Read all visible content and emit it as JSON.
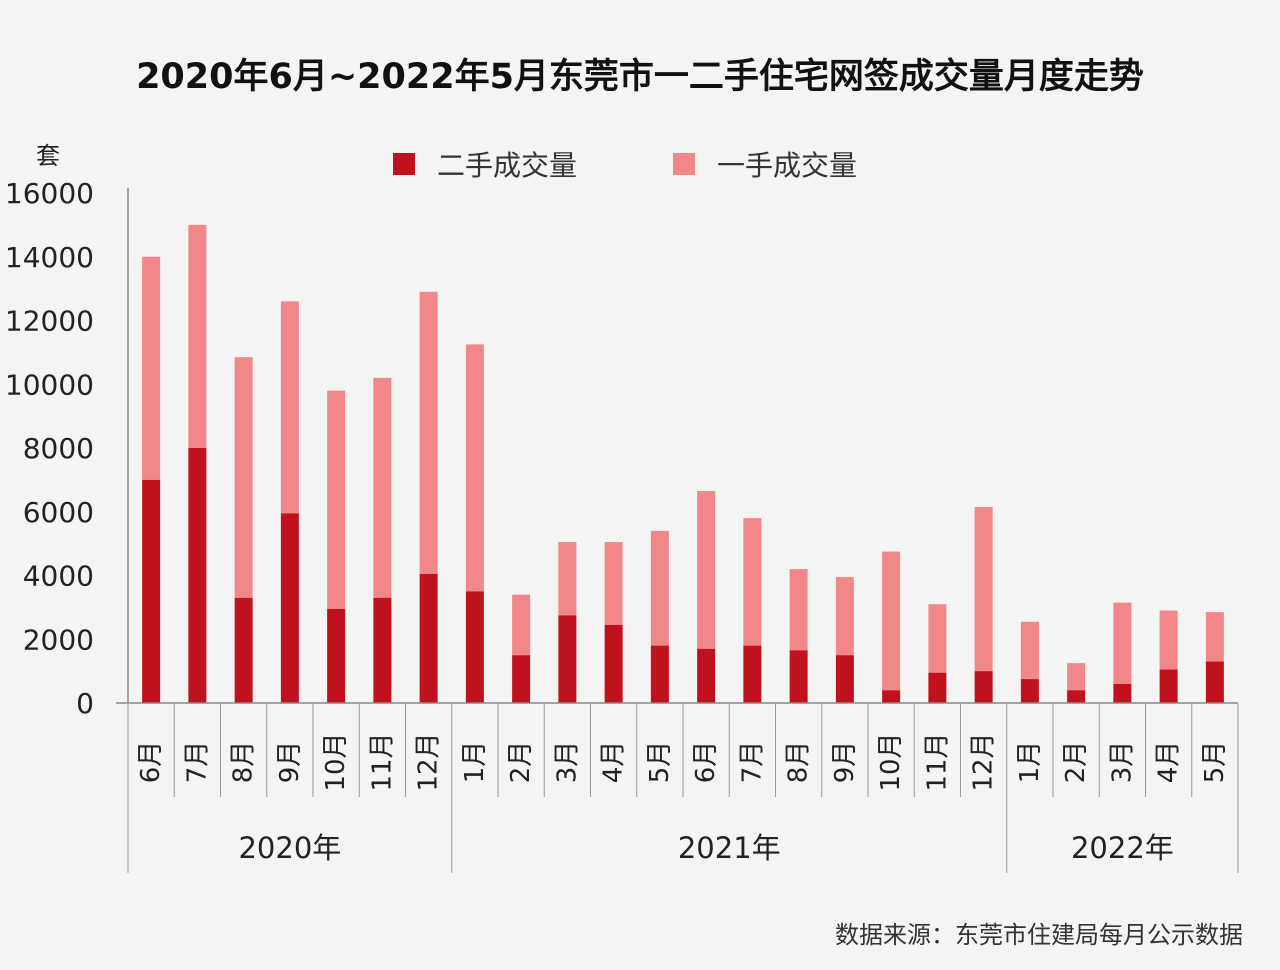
{
  "chart_data": {
    "type": "bar",
    "stacked": true,
    "title": "2020年6月~2022年5月东莞市一二手住宅网签成交量月度走势",
    "ylabel": "套",
    "ylim": [
      0,
      16000
    ],
    "yticks": [
      0,
      2000,
      4000,
      6000,
      8000,
      10000,
      12000,
      14000,
      16000
    ],
    "grid": false,
    "legend_position": "top-center",
    "categories": [
      "6月",
      "7月",
      "8月",
      "9月",
      "10月",
      "11月",
      "12月",
      "1月",
      "2月",
      "3月",
      "4月",
      "5月",
      "6月",
      "7月",
      "8月",
      "9月",
      "10月",
      "11月",
      "12月",
      "1月",
      "2月",
      "3月",
      "4月",
      "5月"
    ],
    "groups": [
      {
        "label": "2020年",
        "count": 7
      },
      {
        "label": "2021年",
        "count": 12
      },
      {
        "label": "2022年",
        "count": 5
      }
    ],
    "series": [
      {
        "name": "二手成交量",
        "color": "#c0121c",
        "values": [
          7000,
          8000,
          3300,
          5950,
          2950,
          3300,
          4050,
          3500,
          1500,
          2750,
          2450,
          1800,
          1700,
          1800,
          1650,
          1500,
          400,
          950,
          1000,
          750,
          400,
          600,
          1050,
          1300
        ]
      },
      {
        "name": "一手成交量",
        "color": "#f2878a",
        "values": [
          7000,
          7000,
          7550,
          6650,
          6850,
          6900,
          8850,
          7750,
          1900,
          2300,
          2600,
          3600,
          4950,
          4000,
          2550,
          2450,
          4350,
          2150,
          5150,
          1800,
          850,
          2550,
          1850,
          1550
        ]
      }
    ]
  },
  "footer": {
    "source": "数据来源：东莞市住建局每月公示数据"
  }
}
